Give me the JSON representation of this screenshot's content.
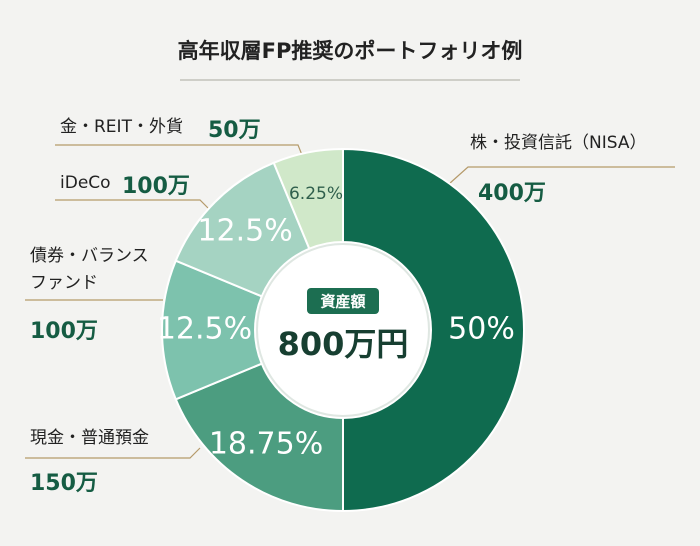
{
  "chart_data": {
    "type": "donut",
    "title": "高年収層FP推奨のポートフォリオ例",
    "categories": [
      "株・投資信託（NISA）",
      "現金・普通預金",
      "債券・バランスファンド",
      "iDeCo",
      "金・REIT・外貨"
    ],
    "values": [
      50,
      18.75,
      12.5,
      12.5,
      6.25
    ],
    "value_labels": [
      "50%",
      "18.75%",
      "12.5%",
      "12.5%",
      "6.25%"
    ],
    "amounts": [
      400,
      150,
      100,
      100,
      50
    ],
    "amount_labels": [
      "400万",
      "150万",
      "100万",
      "100万",
      "50万"
    ],
    "colors": [
      "#0f6b4f",
      "#4c9d80",
      "#7dc2ad",
      "#a5d3c2",
      "#d0e8c9"
    ],
    "center_label": "資産額",
    "total": 800,
    "total_label": "800万円"
  }
}
